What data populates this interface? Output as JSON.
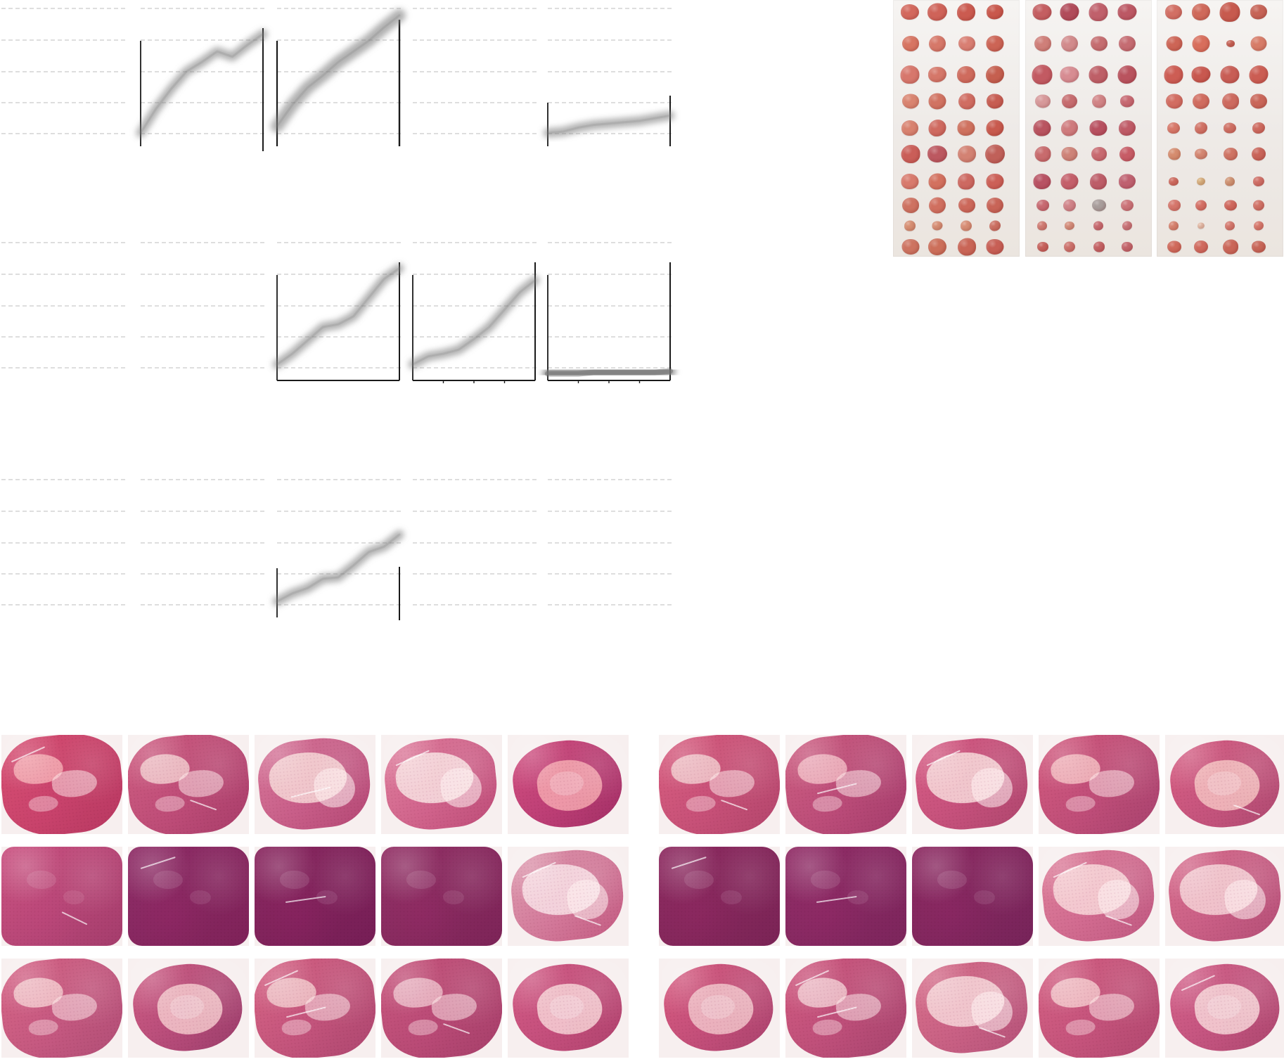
{
  "colors": {
    "background": "#ffffff",
    "chart_grid": "#d3d3d3",
    "chart_axis": "#1a1a1a",
    "chart_band": "#7f7f7f",
    "tumor_red": "#cf5c52",
    "tumor_dark": "#a94552",
    "histology_pink": "#d8587d",
    "histology_dark": "#9b2f62",
    "histology_pale": "#f2c1c8"
  },
  "charts": [
    {
      "name": "chart-r1c1",
      "axes": "none",
      "series": []
    },
    {
      "name": "chart-r1c2",
      "axes": "left-right",
      "series": [
        {
          "values": [
            0.1,
            0.28,
            0.43,
            0.56,
            0.63,
            0.71,
            0.67,
            0.76,
            0.84
          ]
        }
      ]
    },
    {
      "name": "chart-r1c3",
      "axes": "left-right",
      "series": [
        {
          "values": [
            0.15,
            0.31,
            0.44,
            0.53,
            0.63,
            0.71,
            0.79,
            0.89,
            0.98
          ]
        }
      ]
    },
    {
      "name": "chart-r1c4",
      "axes": "none",
      "series": []
    },
    {
      "name": "chart-r1c5",
      "axes": "left-right",
      "series": [
        {
          "values": [
            0.1,
            0.11,
            0.14,
            0.16,
            0.17,
            0.18,
            0.19,
            0.21,
            0.23
          ]
        }
      ]
    },
    {
      "name": "chart-r2c1",
      "axes": "none",
      "series": []
    },
    {
      "name": "chart-r2c2",
      "axes": "none",
      "series": []
    },
    {
      "name": "chart-r2c3",
      "axes": "box",
      "series": [
        {
          "values": [
            0.12,
            0.2,
            0.3,
            0.4,
            0.42,
            0.48,
            0.62,
            0.76,
            0.84
          ]
        }
      ]
    },
    {
      "name": "chart-r2c4",
      "axes": "box",
      "series": [
        {
          "values": [
            0.12,
            0.18,
            0.2,
            0.23,
            0.31,
            0.4,
            0.53,
            0.66,
            0.75
          ]
        }
      ]
    },
    {
      "name": "chart-r2c5",
      "axes": "box",
      "series": [
        {
          "values": [
            0.05,
            0.05,
            0.05,
            0.06,
            0.06,
            0.06,
            0.06,
            0.06,
            0.07
          ]
        }
      ]
    },
    {
      "name": "chart-r3c1",
      "axes": "none",
      "series": []
    },
    {
      "name": "chart-r3c2",
      "axes": "none",
      "series": []
    },
    {
      "name": "chart-r3c3",
      "axes": "left-right",
      "series": [
        {
          "values": [
            0.12,
            0.18,
            0.22,
            0.29,
            0.3,
            0.39,
            0.49,
            0.53,
            0.62
          ]
        }
      ]
    },
    {
      "name": "chart-r3c4",
      "axes": "none",
      "series": []
    },
    {
      "name": "chart-r3c5",
      "axes": "none",
      "series": []
    }
  ],
  "photo_groups": [
    {
      "name": "photo-group-1",
      "rows": [
        [
          {
            "c": "#d3685d",
            "s": 26
          },
          {
            "c": "#cf6359",
            "s": 28
          },
          {
            "c": "#cb5b50",
            "s": 26
          },
          {
            "c": "#c9584c",
            "s": 24
          }
        ],
        [
          {
            "c": "#d77562",
            "s": 24
          },
          {
            "c": "#d67869",
            "s": 24
          },
          {
            "c": "#d97f73",
            "s": 24
          },
          {
            "c": "#cc6455",
            "s": 25
          }
        ],
        [
          {
            "c": "#d7776c",
            "s": 27
          },
          {
            "c": "#d57769",
            "s": 26
          },
          {
            "c": "#cf6b5d",
            "s": 26
          },
          {
            "c": "#c55f4f",
            "s": 26
          }
        ],
        [
          {
            "c": "#d98470",
            "s": 24
          },
          {
            "c": "#d17362",
            "s": 25
          },
          {
            "c": "#d06d62",
            "s": 24
          },
          {
            "c": "#c75d52",
            "s": 24
          }
        ],
        [
          {
            "c": "#d8826f",
            "s": 24
          },
          {
            "c": "#cf6a60",
            "s": 25
          },
          {
            "c": "#cf725f",
            "s": 25
          },
          {
            "c": "#c85a4e",
            "s": 25
          }
        ],
        [
          {
            "c": "#ca5e58",
            "s": 27
          },
          {
            "c": "#bc5860",
            "s": 28
          },
          {
            "c": "#d38273",
            "s": 26
          },
          {
            "c": "#c06059",
            "s": 28
          }
        ],
        [
          {
            "c": "#d87a6d",
            "s": 25
          },
          {
            "c": "#d3715f",
            "s": 25
          },
          {
            "c": "#cd6961",
            "s": 24
          },
          {
            "c": "#cc6057",
            "s": 25
          }
        ],
        [
          {
            "c": "#ce7261",
            "s": 24
          },
          {
            "c": "#d06f5f",
            "s": 24
          },
          {
            "c": "#cc685a",
            "s": 24
          },
          {
            "c": "#c86457",
            "s": 24
          }
        ],
        [
          {
            "c": "#d78f73",
            "s": 16
          },
          {
            "c": "#d78f75",
            "s": 15
          },
          {
            "c": "#d88e75",
            "s": 16
          },
          {
            "c": "#cc7062",
            "s": 16
          }
        ],
        [
          {
            "c": "#cd7360",
            "s": 25
          },
          {
            "c": "#cc6f5a",
            "s": 26
          },
          {
            "c": "#c96556",
            "s": 26
          },
          {
            "c": "#c75f55",
            "s": 25
          }
        ]
      ]
    },
    {
      "name": "photo-group-2",
      "rows": [
        [
          {
            "c": "#c45e61",
            "s": 27
          },
          {
            "c": "#b14b5a",
            "s": 27
          },
          {
            "c": "#c0606b",
            "s": 27
          },
          {
            "c": "#bc5864",
            "s": 27
          }
        ],
        [
          {
            "c": "#cf7f79",
            "s": 24
          },
          {
            "c": "#d28b8c",
            "s": 24
          },
          {
            "c": "#c56d70",
            "s": 24
          },
          {
            "c": "#c56c72",
            "s": 24
          }
        ],
        [
          {
            "c": "#c25a62",
            "s": 29
          },
          {
            "c": "#d78c92",
            "s": 27
          },
          {
            "c": "#be5f67",
            "s": 27
          },
          {
            "c": "#b9535e",
            "s": 27
          }
        ],
        [
          {
            "c": "#d7999a",
            "s": 22
          },
          {
            "c": "#c66c6f",
            "s": 22
          },
          {
            "c": "#d18486",
            "s": 20
          },
          {
            "c": "#c76972",
            "s": 20
          }
        ],
        [
          {
            "c": "#b95460",
            "s": 25
          },
          {
            "c": "#cf7b7d",
            "s": 24
          },
          {
            "c": "#b85060",
            "s": 25
          },
          {
            "c": "#bf5b67",
            "s": 24
          }
        ],
        [
          {
            "c": "#c86b6d",
            "s": 23
          },
          {
            "c": "#ce8378",
            "s": 23
          },
          {
            "c": "#c86a70",
            "s": 22
          },
          {
            "c": "#c75c66",
            "s": 22
          }
        ],
        [
          {
            "c": "#b85263",
            "s": 25
          },
          {
            "c": "#c45f6a",
            "s": 25
          },
          {
            "c": "#bd5d68",
            "s": 24
          },
          {
            "c": "#bf6170",
            "s": 24
          }
        ],
        [
          {
            "c": "#c86a72",
            "s": 18
          },
          {
            "c": "#d08388",
            "s": 18
          },
          {
            "c": "#a89d9b",
            "s": 20
          },
          {
            "c": "#cc7479",
            "s": 18
          }
        ],
        [
          {
            "c": "#d17c73",
            "s": 14
          },
          {
            "c": "#d58d7a",
            "s": 14
          },
          {
            "c": "#c86b70",
            "s": 14
          },
          {
            "c": "#c97478",
            "s": 14
          }
        ],
        [
          {
            "c": "#c7625c",
            "s": 16
          },
          {
            "c": "#cd726c",
            "s": 16
          },
          {
            "c": "#c46264",
            "s": 16
          },
          {
            "c": "#c4666c",
            "s": 16
          }
        ]
      ]
    },
    {
      "name": "photo-group-3",
      "rows": [
        [
          {
            "c": "#d26f64",
            "s": 24
          },
          {
            "c": "#cf695a",
            "s": 26
          },
          {
            "c": "#c75a4e",
            "s": 29
          },
          {
            "c": "#c66356",
            "s": 24
          }
        ],
        [
          {
            "c": "#cd6556",
            "s": 23
          },
          {
            "c": "#d86e5c",
            "s": 25
          },
          {
            "c": "#c76255",
            "s": 12
          },
          {
            "c": "#d77c68",
            "s": 23
          }
        ],
        [
          {
            "c": "#cd5d54",
            "s": 27
          },
          {
            "c": "#c8584f",
            "s": 27
          },
          {
            "c": "#c85d55",
            "s": 27
          },
          {
            "c": "#cb5d53",
            "s": 27
          }
        ],
        [
          {
            "c": "#d26d62",
            "s": 24
          },
          {
            "c": "#d06c5f",
            "s": 24
          },
          {
            "c": "#cd6a5f",
            "s": 24
          },
          {
            "c": "#c96659",
            "s": 24
          }
        ],
        [
          {
            "c": "#d8796a",
            "s": 18
          },
          {
            "c": "#d17265",
            "s": 18
          },
          {
            "c": "#cf6f63",
            "s": 18
          },
          {
            "c": "#ce6a5f",
            "s": 18
          }
        ],
        [
          {
            "c": "#d68d6f",
            "s": 18
          },
          {
            "c": "#d48772",
            "s": 18
          },
          {
            "c": "#cf7464",
            "s": 20
          },
          {
            "c": "#c96459",
            "s": 20
          }
        ],
        [
          {
            "c": "#cf6c60",
            "s": 14
          },
          {
            "c": "#d9b17e",
            "s": 12
          },
          {
            "c": "#d09473",
            "s": 14
          },
          {
            "c": "#d06f66",
            "s": 16
          }
        ],
        [
          {
            "c": "#d6776c",
            "s": 18
          },
          {
            "c": "#d57065",
            "s": 16
          },
          {
            "c": "#d0685d",
            "s": 18
          },
          {
            "c": "#d17266",
            "s": 16
          }
        ],
        [
          {
            "c": "#d7836f",
            "s": 14
          },
          {
            "c": "#e7bea9",
            "s": 10
          },
          {
            "c": "#d5786d",
            "s": 14
          },
          {
            "c": "#d7786c",
            "s": 14
          }
        ],
        [
          {
            "c": "#d06a5b",
            "s": 20
          },
          {
            "c": "#d06a5e",
            "s": 20
          },
          {
            "c": "#ca6658",
            "s": 22
          },
          {
            "c": "#c86658",
            "s": 20
          }
        ]
      ]
    }
  ],
  "histology_groups": [
    {
      "name": "histology-left",
      "panels": [
        {
          "bg": "#d84f73",
          "core": "#f3a8b0",
          "dark": "#b83862",
          "tone": "mixed"
        },
        {
          "bg": "#d05e82",
          "core": "#efc5c9",
          "dark": "#aa3d6b",
          "tone": "mixed"
        },
        {
          "bg": "#d8779a",
          "core": "#f5d4d4",
          "dark": "#b54775",
          "tone": "pale"
        },
        {
          "bg": "#e07e9d",
          "core": "#f7dfe0",
          "dark": "#bf4c79",
          "tone": "pale"
        },
        {
          "bg": "#d24f80",
          "core": "#f3a4ad",
          "dark": "#a42f67",
          "tone": "ring"
        },
        {
          "bg": "#cb5281",
          "core": "#e9a5b9",
          "dark": "#a53d6d",
          "tone": "dense"
        },
        {
          "bg": "#8f2d67",
          "core": "#c0668e",
          "dark": "#7f2259",
          "tone": "dense"
        },
        {
          "bg": "#8a2860",
          "core": "#b95f88",
          "dark": "#761e56",
          "tone": "dense"
        },
        {
          "bg": "#933166",
          "core": "#c8598a",
          "dark": "#7d2458",
          "tone": "dense"
        },
        {
          "bg": "#df9bb0",
          "core": "#f7dfe4",
          "dark": "#c45a82",
          "tone": "pale"
        },
        {
          "bg": "#d76587",
          "core": "#f2c5ca",
          "dark": "#b24e77",
          "tone": "mixed"
        },
        {
          "bg": "#cf5d84",
          "core": "#f2c4c9",
          "dark": "#9c3d6c",
          "tone": "ring"
        },
        {
          "bg": "#d76485",
          "core": "#f0c3c7",
          "dark": "#ae4670",
          "tone": "mixed"
        },
        {
          "bg": "#c9577e",
          "core": "#eab8c4",
          "dark": "#a73f6b",
          "tone": "mixed"
        },
        {
          "bg": "#d35b85",
          "core": "#f5cfd3",
          "dark": "#b1436f",
          "tone": "ring"
        }
      ]
    },
    {
      "name": "histology-right",
      "panels": [
        {
          "bg": "#d95e80",
          "core": "#f0c5c9",
          "dark": "#b4456d",
          "tone": "mixed"
        },
        {
          "bg": "#cf5f82",
          "core": "#efb4bf",
          "dark": "#a63c6d",
          "tone": "mixed"
        },
        {
          "bg": "#d85d85",
          "core": "#f6d6d8",
          "dark": "#b0466f",
          "tone": "pale"
        },
        {
          "bg": "#d45b7f",
          "core": "#f2b9be",
          "dark": "#a9426f",
          "tone": "mixed"
        },
        {
          "bg": "#d85f84",
          "core": "#f3bfbf",
          "dark": "#b04a72",
          "tone": "ring"
        },
        {
          "bg": "#8e2b61",
          "core": "#bc6389",
          "dark": "#7b2456",
          "tone": "dense"
        },
        {
          "bg": "#922d67",
          "core": "#c06c90",
          "dark": "#7c255c",
          "tone": "dense"
        },
        {
          "bg": "#8d2a62",
          "core": "#c56a8f",
          "dark": "#77245a",
          "tone": "dense"
        },
        {
          "bg": "#df7f9b",
          "core": "#f7d5d8",
          "dark": "#c15982",
          "tone": "pale"
        },
        {
          "bg": "#d96f8f",
          "core": "#f4d0d4",
          "dark": "#b64f78",
          "tone": "pale"
        },
        {
          "bg": "#d85b80",
          "core": "#f0c0c6",
          "dark": "#ac436f",
          "tone": "ring"
        },
        {
          "bg": "#d25b81",
          "core": "#efc4cc",
          "dark": "#a8446f",
          "tone": "mixed"
        },
        {
          "bg": "#d86f8b",
          "core": "#f5d3d6",
          "dark": "#b6537a",
          "tone": "pale"
        },
        {
          "bg": "#d56184",
          "core": "#f2c3c8",
          "dark": "#b24770",
          "tone": "mixed"
        },
        {
          "bg": "#d6628b",
          "core": "#f5d2d5",
          "dark": "#ae4770",
          "tone": "ring"
        }
      ]
    }
  ]
}
